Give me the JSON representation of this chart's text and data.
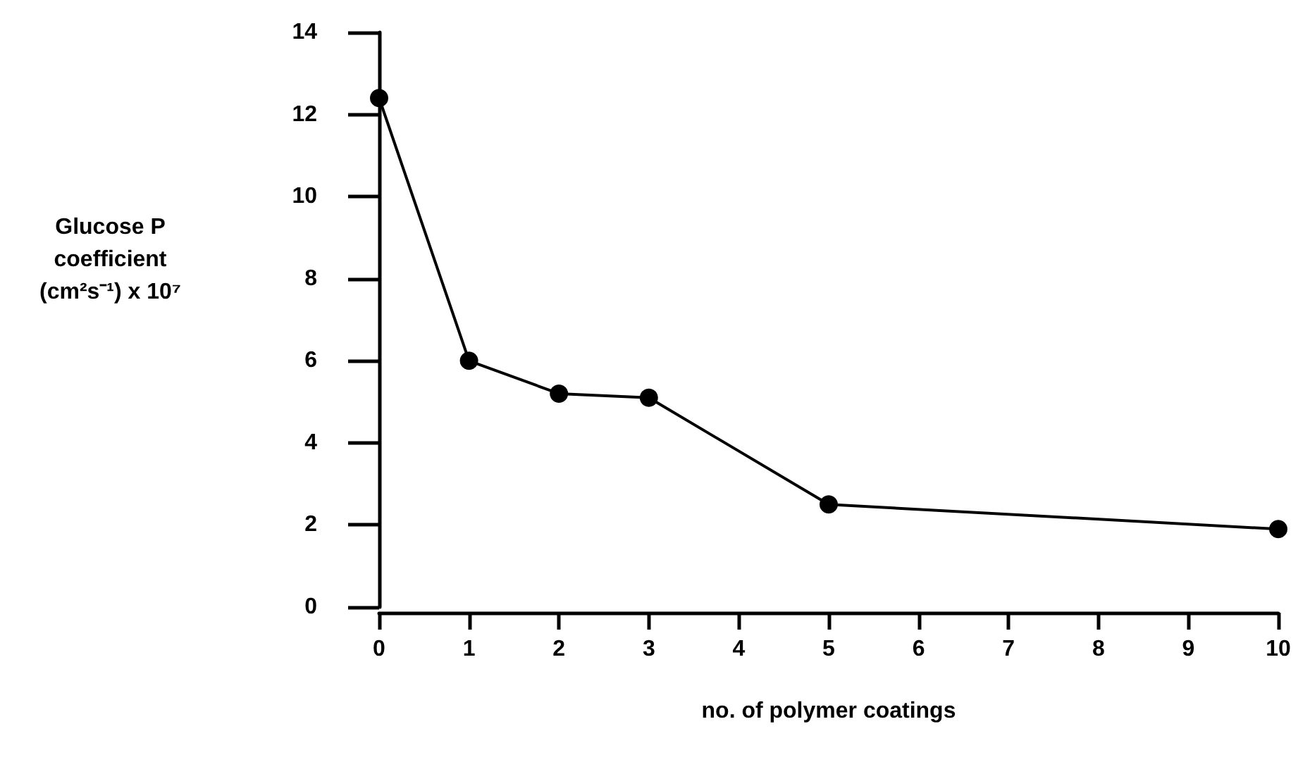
{
  "chart_data": {
    "type": "line",
    "xlabel": "no. of polymer coatings",
    "ylabel": "Glucose P\ncoefficient\n(cm²s⁻¹) x 10⁷",
    "x": [
      0,
      1,
      2,
      3,
      5,
      10
    ],
    "series": [
      {
        "color": "#000000",
        "values": [
          12.4,
          6.0,
          5.2,
          5.1,
          2.5,
          1.9
        ]
      }
    ],
    "xlim": [
      0,
      10
    ],
    "xticks": [
      0,
      1,
      2,
      3,
      4,
      5,
      6,
      7,
      8,
      9,
      10
    ],
    "ylim": [
      0,
      14
    ],
    "yticks": [
      0,
      2,
      4,
      6,
      8,
      10,
      12,
      14
    ],
    "grid": false,
    "marker": "circle",
    "line_style": "solid"
  }
}
